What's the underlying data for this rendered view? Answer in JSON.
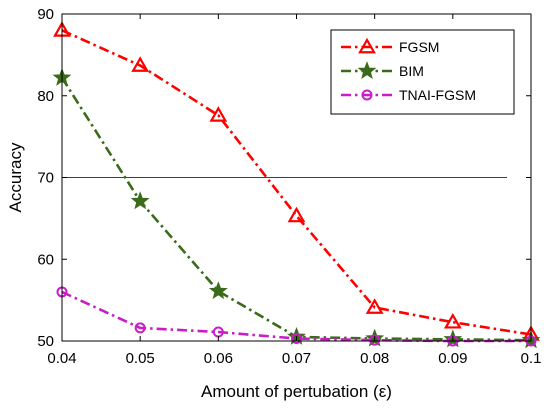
{
  "chart_data": {
    "type": "line",
    "xlabel": "Amount of pertubation (ε)",
    "ylabel": "Accuracy",
    "x": [
      0.04,
      0.05,
      0.06,
      0.07,
      0.08,
      0.09,
      0.1
    ],
    "x_tick_labels": [
      "0.04",
      "0.05",
      "0.06",
      "0.07",
      "0.08",
      "0.09",
      "0.1"
    ],
    "xlim": [
      0.04,
      0.1
    ],
    "ylim": [
      50,
      90
    ],
    "y_ticks": [
      50,
      60,
      70,
      80,
      90
    ],
    "y_tick_labels": [
      "50",
      "60",
      "70",
      "80",
      "90"
    ],
    "reference_line_y": 70,
    "grid": false,
    "legend_position": "top-right",
    "series": [
      {
        "name": "FGSM",
        "color": "#ff0000",
        "marker": "triangle",
        "values": [
          88.0,
          83.7,
          77.6,
          65.3,
          54.1,
          52.3,
          50.8
        ]
      },
      {
        "name": "BIM",
        "color": "#3a6b1a",
        "marker": "star",
        "values": [
          82.2,
          67.1,
          56.1,
          50.5,
          50.3,
          50.2,
          50.1
        ]
      },
      {
        "name": "TNAI-FGSM",
        "color": "#c81ec8",
        "marker": "circle",
        "values": [
          56.0,
          51.6,
          51.1,
          50.3,
          50.1,
          50.0,
          50.0
        ]
      }
    ]
  }
}
